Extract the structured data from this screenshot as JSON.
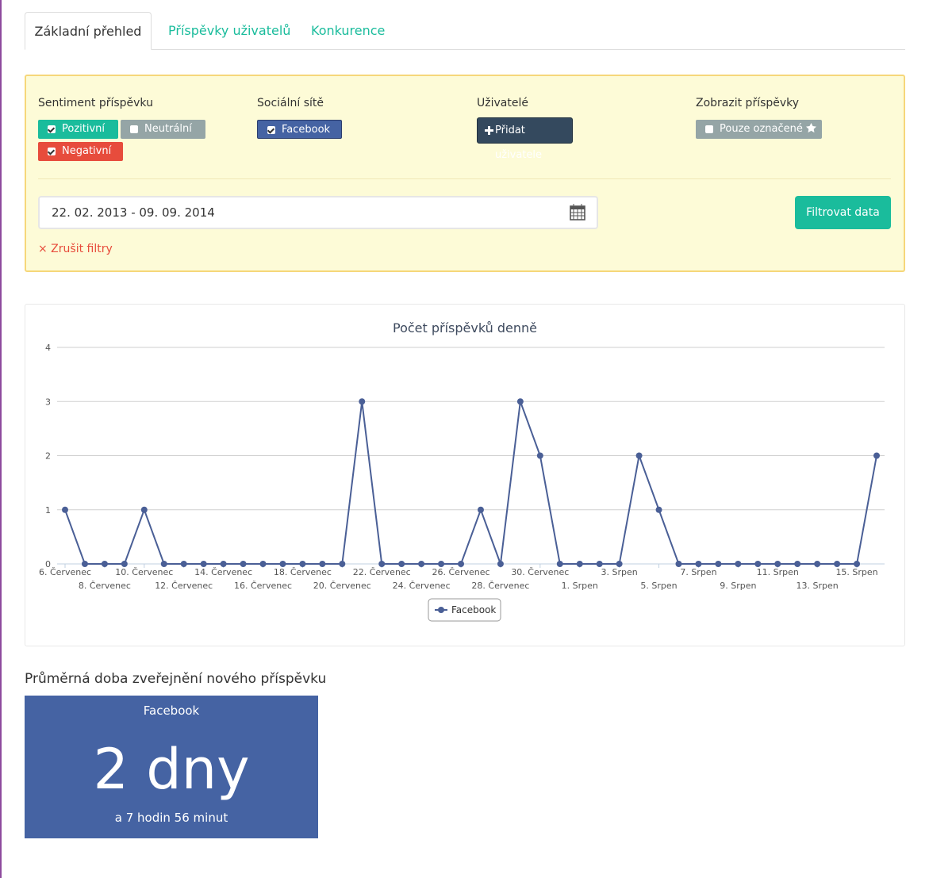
{
  "tabs": [
    "Základní přehled",
    "Příspěvky uživatelů",
    "Konkurence"
  ],
  "filters": {
    "sentiment": {
      "label": "Sentiment příspěvku",
      "options": [
        "Pozitivní",
        "Neutrální",
        "Negativní"
      ]
    },
    "networks": {
      "label": "Sociální sítě",
      "options": [
        "Facebook"
      ]
    },
    "users": {
      "label": "Uživatelé",
      "button": "Přidat uživatele"
    },
    "show": {
      "label": "Zobrazit příspěvky",
      "options": [
        "Pouze označené"
      ]
    },
    "date_range": "22. 02. 2013 - 09. 09. 2014",
    "submit": "Filtrovat data",
    "clear": "× Zrušit filtry"
  },
  "chart_data": {
    "type": "line",
    "title": "Počet příspěvků denně",
    "categories": [
      "6. Červenec",
      null,
      "8. Červenec",
      null,
      "10. Červenec",
      null,
      "12. Červenec",
      null,
      "14. Červenec",
      null,
      "16. Červenec",
      null,
      "18. Červenec",
      null,
      "20. Červenec",
      null,
      "22. Červenec",
      null,
      "24. Červenec",
      null,
      "26. Červenec",
      null,
      "28. Červenec",
      null,
      "30. Červenec",
      null,
      "1. Srpen",
      null,
      "3. Srpen",
      null,
      "5. Srpen",
      null,
      "7. Srpen",
      null,
      "9. Srpen",
      null,
      "11. Srpen",
      null,
      "13. Srpen",
      null,
      "15. Srpen",
      null
    ],
    "series": [
      {
        "name": "Facebook",
        "color": "#4a5f96",
        "values": [
          1,
          0,
          0,
          0,
          1,
          0,
          0,
          0,
          0,
          0,
          0,
          0,
          0,
          0,
          0,
          3,
          0,
          0,
          0,
          0,
          0,
          1,
          0,
          3,
          2,
          0,
          0,
          0,
          0,
          2,
          1,
          0,
          0,
          0,
          0,
          0,
          0,
          0,
          0,
          0,
          0,
          2
        ]
      }
    ],
    "ylim": [
      0,
      4
    ],
    "yticks": [
      0,
      1,
      2,
      3,
      4
    ],
    "grid": true
  },
  "stats": {
    "title": "Průměrná doba zveřejnění nového příspěvku",
    "network": "Facebook",
    "value": "2 dny",
    "detail": "a 7 hodin 56 minut"
  }
}
